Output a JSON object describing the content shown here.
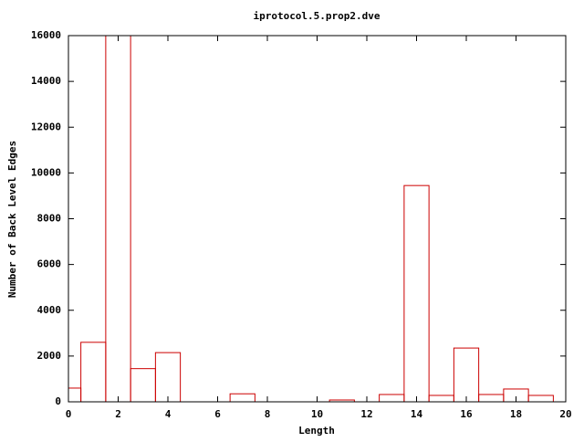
{
  "chart_data": {
    "type": "histogram",
    "title": "iprotocol.5.prop2.dve",
    "x_label": "Length",
    "y_label": "Number of Back Level Edges",
    "x": [
      0,
      1,
      2,
      3,
      4,
      5,
      6,
      7,
      8,
      9,
      10,
      11,
      12,
      13,
      14,
      15,
      16,
      17,
      18,
      19
    ],
    "values": [
      600,
      2600,
      16000,
      1450,
      2150,
      0,
      0,
      350,
      0,
      0,
      0,
      80,
      0,
      320,
      9450,
      280,
      2350,
      320,
      560,
      280
    ],
    "color": "#cc0000",
    "xlim": [
      0,
      20
    ],
    "xticks": [
      0,
      2,
      4,
      6,
      8,
      10,
      12,
      14,
      16,
      18,
      20
    ],
    "ylim": [
      0,
      16000
    ],
    "yticks": [
      0,
      2000,
      4000,
      6000,
      8000,
      10000,
      12000,
      14000,
      16000
    ]
  }
}
